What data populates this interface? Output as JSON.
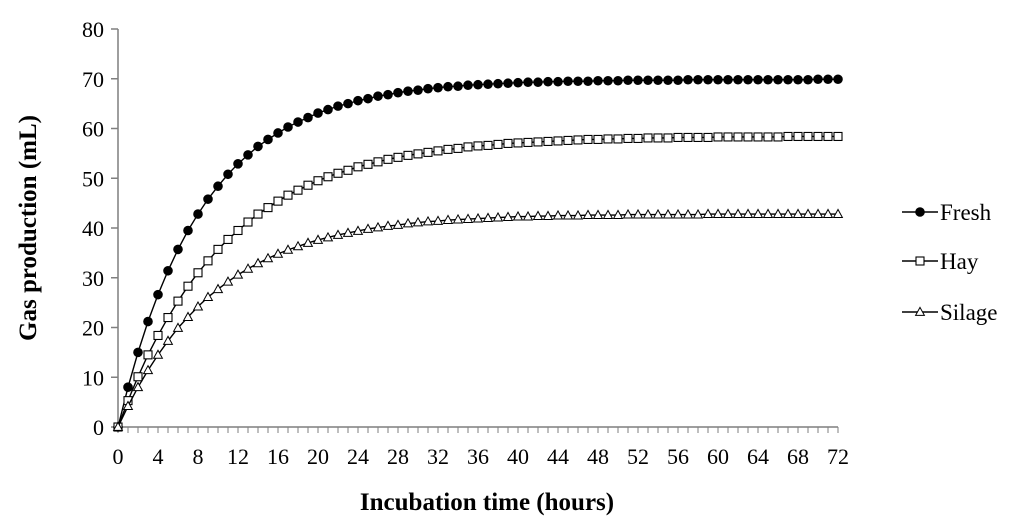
{
  "chart_data": {
    "type": "line",
    "xlabel": "Incubation time (hours)",
    "ylabel": "Gas production (mL)",
    "xlim": [
      0,
      72
    ],
    "ylim": [
      0,
      80
    ],
    "xticks": [
      0,
      4,
      8,
      12,
      16,
      20,
      24,
      28,
      32,
      36,
      40,
      44,
      48,
      52,
      56,
      60,
      64,
      68,
      72
    ],
    "yticks": [
      0,
      10,
      20,
      30,
      40,
      50,
      60,
      70,
      80
    ],
    "grid": false,
    "legend_position": "right",
    "series": [
      {
        "name": "Fresh",
        "marker": "filled-circle",
        "x": [
          0,
          1,
          2,
          3,
          4,
          5,
          6,
          7,
          8,
          9,
          10,
          11,
          12,
          13,
          14,
          15,
          16,
          17,
          18,
          19,
          20,
          21,
          22,
          23,
          24,
          25,
          26,
          27,
          28,
          29,
          30,
          31,
          32,
          33,
          34,
          35,
          36,
          37,
          38,
          39,
          40,
          41,
          42,
          43,
          44,
          45,
          46,
          47,
          48,
          49,
          50,
          51,
          52,
          53,
          54,
          55,
          56,
          57,
          58,
          59,
          60,
          61,
          62,
          63,
          64,
          65,
          66,
          67,
          68,
          69,
          70,
          71,
          72
        ],
        "values": [
          0,
          8.0,
          15.0,
          21.2,
          26.6,
          31.4,
          35.7,
          39.5,
          42.8,
          45.8,
          48.4,
          50.8,
          52.9,
          54.7,
          56.4,
          57.8,
          59.1,
          60.3,
          61.3,
          62.2,
          63.1,
          63.8,
          64.5,
          65.0,
          65.6,
          66.0,
          66.5,
          66.8,
          67.2,
          67.5,
          67.7,
          68.0,
          68.2,
          68.4,
          68.5,
          68.7,
          68.8,
          68.9,
          69.0,
          69.1,
          69.2,
          69.3,
          69.3,
          69.4,
          69.4,
          69.5,
          69.5,
          69.5,
          69.6,
          69.6,
          69.6,
          69.7,
          69.7,
          69.7,
          69.7,
          69.7,
          69.7,
          69.8,
          69.8,
          69.8,
          69.8,
          69.8,
          69.8,
          69.8,
          69.8,
          69.8,
          69.8,
          69.8,
          69.8,
          69.8,
          69.9,
          69.9,
          69.9
        ]
      },
      {
        "name": "Hay",
        "marker": "open-square",
        "x": [
          0,
          1,
          2,
          3,
          4,
          5,
          6,
          7,
          8,
          9,
          10,
          11,
          12,
          13,
          14,
          15,
          16,
          17,
          18,
          19,
          20,
          21,
          22,
          23,
          24,
          25,
          26,
          27,
          28,
          29,
          30,
          31,
          32,
          33,
          34,
          35,
          36,
          37,
          38,
          39,
          40,
          41,
          42,
          43,
          44,
          45,
          46,
          47,
          48,
          49,
          50,
          51,
          52,
          53,
          54,
          55,
          56,
          57,
          58,
          59,
          60,
          61,
          62,
          63,
          64,
          65,
          66,
          67,
          68,
          69,
          70,
          71,
          72
        ],
        "values": [
          0,
          5.3,
          10.1,
          14.5,
          18.4,
          22.0,
          25.3,
          28.3,
          31.0,
          33.4,
          35.7,
          37.7,
          39.5,
          41.2,
          42.8,
          44.1,
          45.4,
          46.6,
          47.6,
          48.6,
          49.5,
          50.3,
          51.0,
          51.6,
          52.3,
          52.8,
          53.3,
          53.8,
          54.2,
          54.6,
          54.9,
          55.2,
          55.5,
          55.8,
          56.0,
          56.3,
          56.5,
          56.6,
          56.8,
          57.0,
          57.1,
          57.2,
          57.3,
          57.4,
          57.5,
          57.6,
          57.7,
          57.8,
          57.8,
          57.9,
          57.9,
          58.0,
          58.0,
          58.1,
          58.1,
          58.1,
          58.2,
          58.2,
          58.2,
          58.2,
          58.3,
          58.3,
          58.3,
          58.3,
          58.3,
          58.3,
          58.3,
          58.4,
          58.4,
          58.4,
          58.4,
          58.4,
          58.4
        ]
      },
      {
        "name": "Silage",
        "marker": "open-triangle",
        "x": [
          0,
          1,
          2,
          3,
          4,
          5,
          6,
          7,
          8,
          9,
          10,
          11,
          12,
          13,
          14,
          15,
          16,
          17,
          18,
          19,
          20,
          21,
          22,
          23,
          24,
          25,
          26,
          27,
          28,
          29,
          30,
          31,
          32,
          33,
          34,
          35,
          36,
          37,
          38,
          39,
          40,
          41,
          42,
          43,
          44,
          45,
          46,
          47,
          48,
          49,
          50,
          51,
          52,
          53,
          54,
          55,
          56,
          57,
          58,
          59,
          60,
          61,
          62,
          63,
          64,
          65,
          66,
          67,
          68,
          69,
          70,
          71,
          72
        ],
        "values": [
          0,
          4.2,
          8.0,
          11.4,
          14.5,
          17.3,
          19.9,
          22.1,
          24.2,
          26.1,
          27.7,
          29.2,
          30.6,
          31.8,
          32.9,
          33.9,
          34.8,
          35.6,
          36.3,
          37.0,
          37.6,
          38.1,
          38.6,
          39.0,
          39.4,
          39.8,
          40.1,
          40.4,
          40.6,
          40.9,
          41.1,
          41.3,
          41.4,
          41.6,
          41.7,
          41.8,
          41.9,
          42.0,
          42.1,
          42.2,
          42.3,
          42.3,
          42.4,
          42.4,
          42.5,
          42.5,
          42.5,
          42.6,
          42.6,
          42.6,
          42.6,
          42.7,
          42.7,
          42.7,
          42.7,
          42.7,
          42.7,
          42.7,
          42.7,
          42.8,
          42.8,
          42.8,
          42.8,
          42.8,
          42.8,
          42.8,
          42.8,
          42.8,
          42.8,
          42.8,
          42.8,
          42.8,
          42.8
        ]
      }
    ]
  }
}
